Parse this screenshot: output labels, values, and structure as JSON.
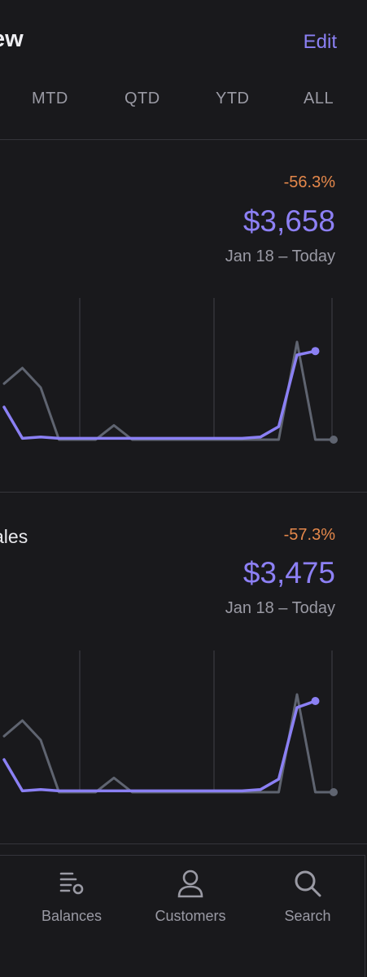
{
  "header": {
    "title": "ew",
    "edit_label": "Edit"
  },
  "ranges": [
    "MTD",
    "QTD",
    "YTD",
    "ALL"
  ],
  "colors": {
    "accent": "#8b80f4",
    "negative": "#e5884b",
    "comparison": "#5f6470",
    "background": "#19191c"
  },
  "metrics": [
    {
      "label": "",
      "change": "-56.3%",
      "amount": "$3,658",
      "period": "Jan 18 – Today"
    },
    {
      "label": "ales",
      "change": "-57.3%",
      "amount": "$3,475",
      "period": "Jan 18 – Today"
    }
  ],
  "chart_data": [
    {
      "type": "line",
      "ylim": [
        0,
        100
      ],
      "series": [
        {
          "role": "current",
          "color": "#8b80f4",
          "values": [
            25,
            1,
            2,
            1,
            1,
            1,
            1,
            1,
            1,
            1,
            1,
            1,
            1,
            1,
            2,
            10,
            65,
            68
          ]
        },
        {
          "role": "previous",
          "color": "#5f6470",
          "values": [
            43,
            55,
            40,
            0,
            0,
            0,
            11,
            0,
            0,
            0,
            0,
            0,
            0,
            0,
            0,
            0,
            75,
            0,
            0
          ]
        }
      ]
    },
    {
      "type": "line",
      "ylim": [
        0,
        100
      ],
      "series": [
        {
          "role": "current",
          "color": "#8b80f4",
          "values": [
            25,
            1,
            2,
            1,
            1,
            1,
            1,
            1,
            1,
            1,
            1,
            1,
            1,
            1,
            2,
            10,
            65,
            70
          ]
        },
        {
          "role": "previous",
          "color": "#5f6470",
          "values": [
            43,
            55,
            40,
            0,
            0,
            0,
            11,
            0,
            0,
            0,
            0,
            0,
            0,
            0,
            0,
            0,
            75,
            0,
            0
          ]
        }
      ]
    }
  ],
  "nav": [
    {
      "label": "Balances",
      "icon": "balances-icon"
    },
    {
      "label": "Customers",
      "icon": "customers-icon"
    },
    {
      "label": "Search",
      "icon": "search-icon"
    }
  ]
}
